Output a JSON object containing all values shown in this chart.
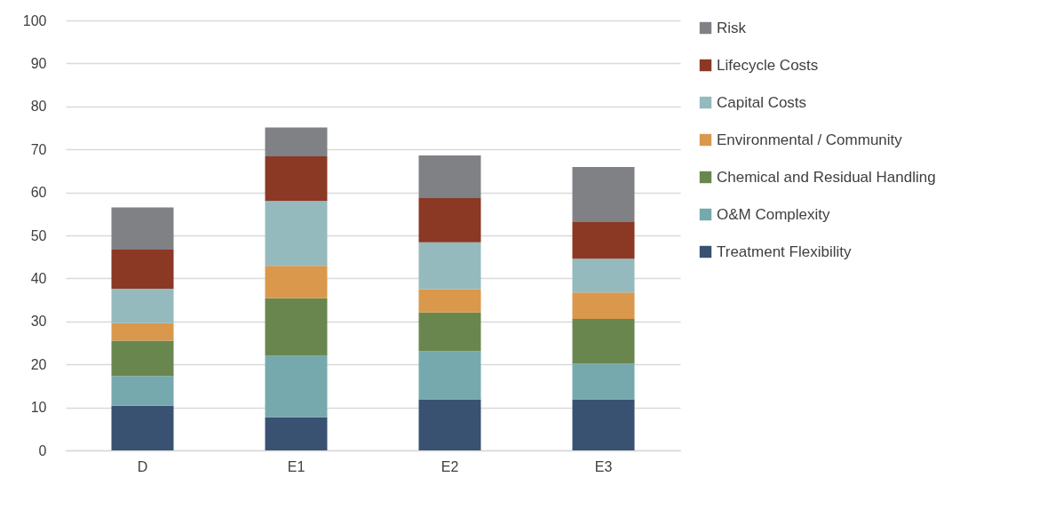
{
  "chart_data": {
    "type": "bar",
    "stacked": true,
    "categories": [
      "D",
      "E1",
      "E2",
      "E3"
    ],
    "ylim": [
      0,
      100
    ],
    "yticks": [
      0,
      10,
      20,
      30,
      40,
      50,
      60,
      70,
      80,
      90,
      100
    ],
    "grid": "y",
    "legend": "right",
    "series": [
      {
        "name": "Treatment Flexibility",
        "color": "#395272",
        "values": [
          10.4,
          7.7,
          11.9,
          11.9
        ]
      },
      {
        "name": "O&M Complexity",
        "color": "#75a9ad",
        "values": [
          6.9,
          14.3,
          11.2,
          8.3
        ]
      },
      {
        "name": "Chemical and Residual Handling",
        "color": "#69864f",
        "values": [
          8.2,
          13.4,
          9.0,
          10.4
        ]
      },
      {
        "name": "Environmental / Community",
        "color": "#d9984b",
        "values": [
          4.1,
          7.5,
          5.4,
          6.1
        ]
      },
      {
        "name": "Capital Costs",
        "color": "#94babe",
        "values": [
          8.0,
          15.1,
          10.9,
          7.9
        ]
      },
      {
        "name": "Lifecycle Costs",
        "color": "#8b3825",
        "values": [
          9.1,
          10.4,
          10.3,
          8.5
        ]
      },
      {
        "name": "Risk",
        "color": "#808185",
        "values": [
          9.8,
          6.7,
          9.9,
          12.8
        ]
      }
    ]
  }
}
